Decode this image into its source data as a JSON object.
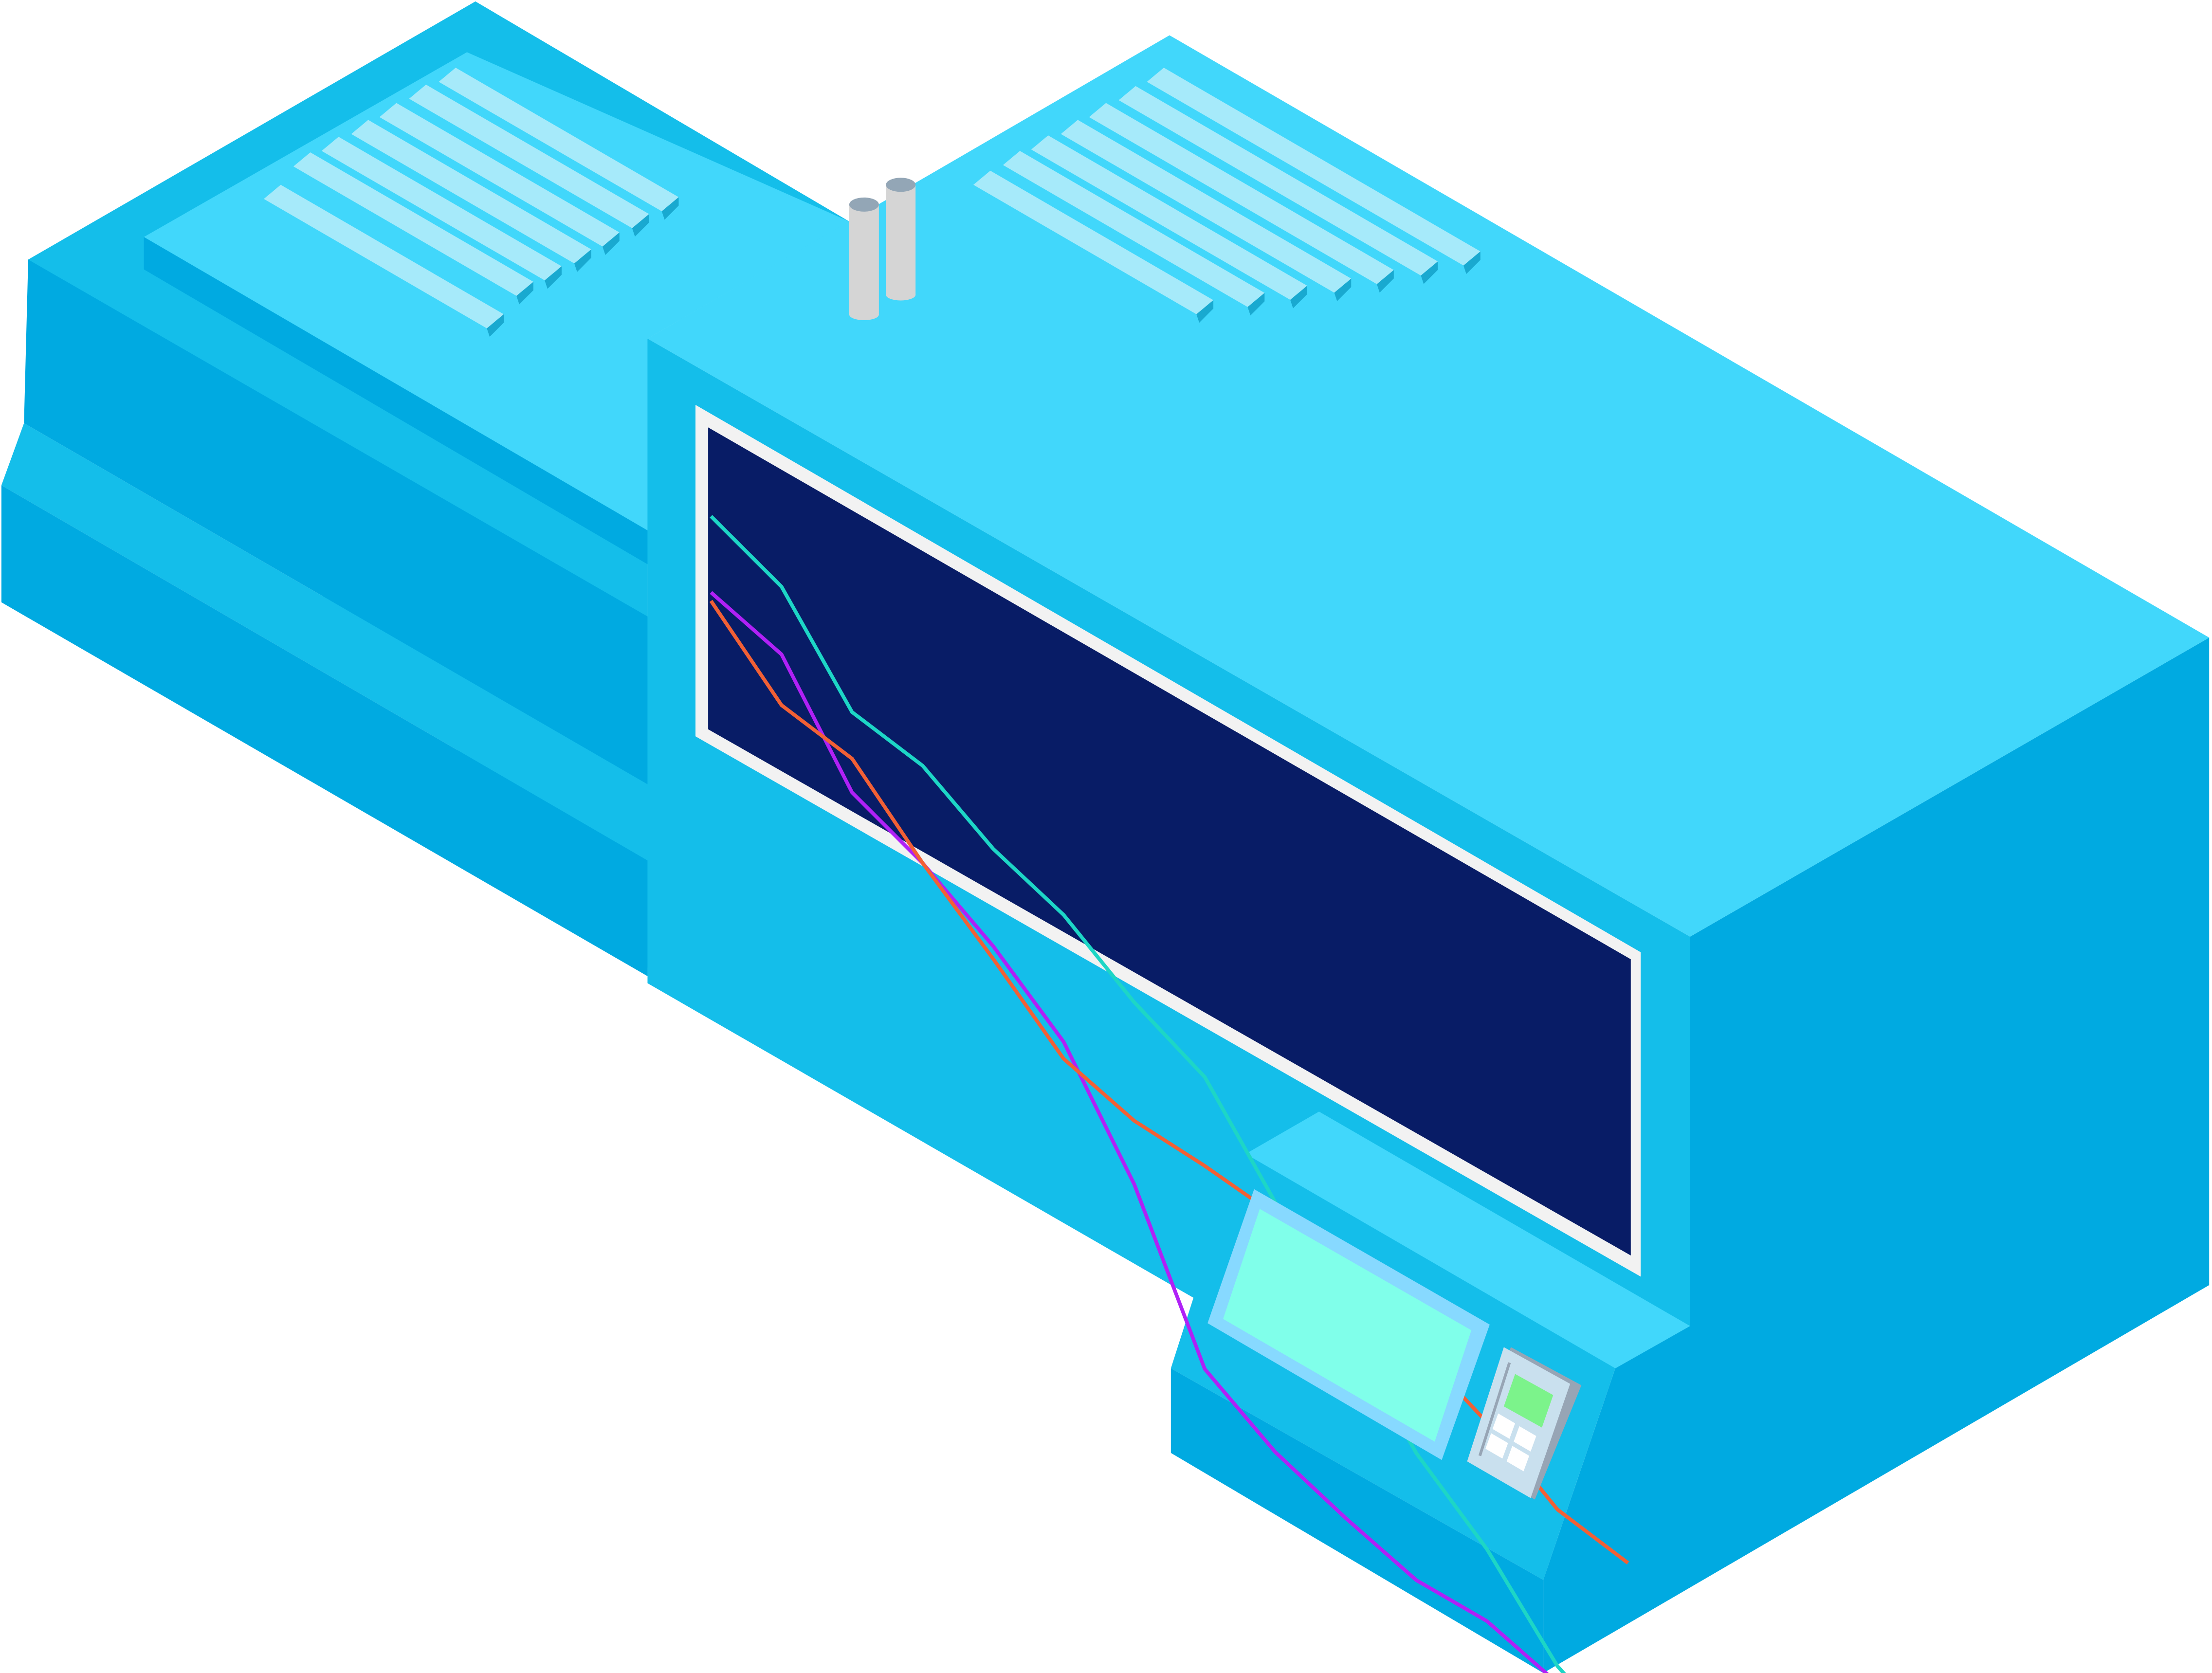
{
  "illustration": {
    "subject": "isometric-monitoring-machine",
    "colors": {
      "top_surface": "#41D7FB",
      "body_mid": "#14BEEA",
      "body_dark": "#00AAE1",
      "vent_slat": "#A6EAFA",
      "vent_slat_shade": "#19A9D0",
      "screen_bg": "#081C66",
      "screen_frame": "#F2F2F2",
      "cap_gray": "#D5D5D5",
      "cap_top": "#93A6B6",
      "panel_screen": "#80FFEA",
      "panel_border": "#87D9FF",
      "keypad_body": "#C9E0EE",
      "keypad_shadow": "#97A5B5",
      "keypad_display": "#7CF38B"
    }
  },
  "chart_data": {
    "type": "line",
    "x": [
      1,
      2,
      3,
      4,
      5,
      6,
      7,
      8,
      9,
      10,
      11,
      12,
      13,
      14
    ],
    "series": [
      {
        "color": "#1DD6C6",
        "values": [
          5.0,
          4.3,
          2.3,
          2.0,
          1.0,
          0.4,
          -0.7,
          -1.5,
          -3.5,
          -5.5,
          -7.5,
          -8.8,
          -10.6,
          -11.5
        ]
      },
      {
        "color": "#B021F6",
        "values": [
          3.2,
          2.7,
          0.4,
          -0.3,
          -1.3,
          -2.6,
          -5.0,
          -8.4,
          -9.4,
          -10.0,
          -10.5,
          -10.5,
          -11.0,
          -11.2
        ]
      },
      {
        "color": "#F26035",
        "values": [
          3.0,
          1.5,
          1.2,
          -0.3,
          -1.6,
          -3.0,
          -3.5,
          -3.6,
          -3.8,
          -4.3,
          -5.0,
          -5.8,
          -6.9,
          -7.2
        ]
      }
    ],
    "ylim": [
      -13,
      7
    ],
    "grid": false,
    "legend": "none"
  }
}
